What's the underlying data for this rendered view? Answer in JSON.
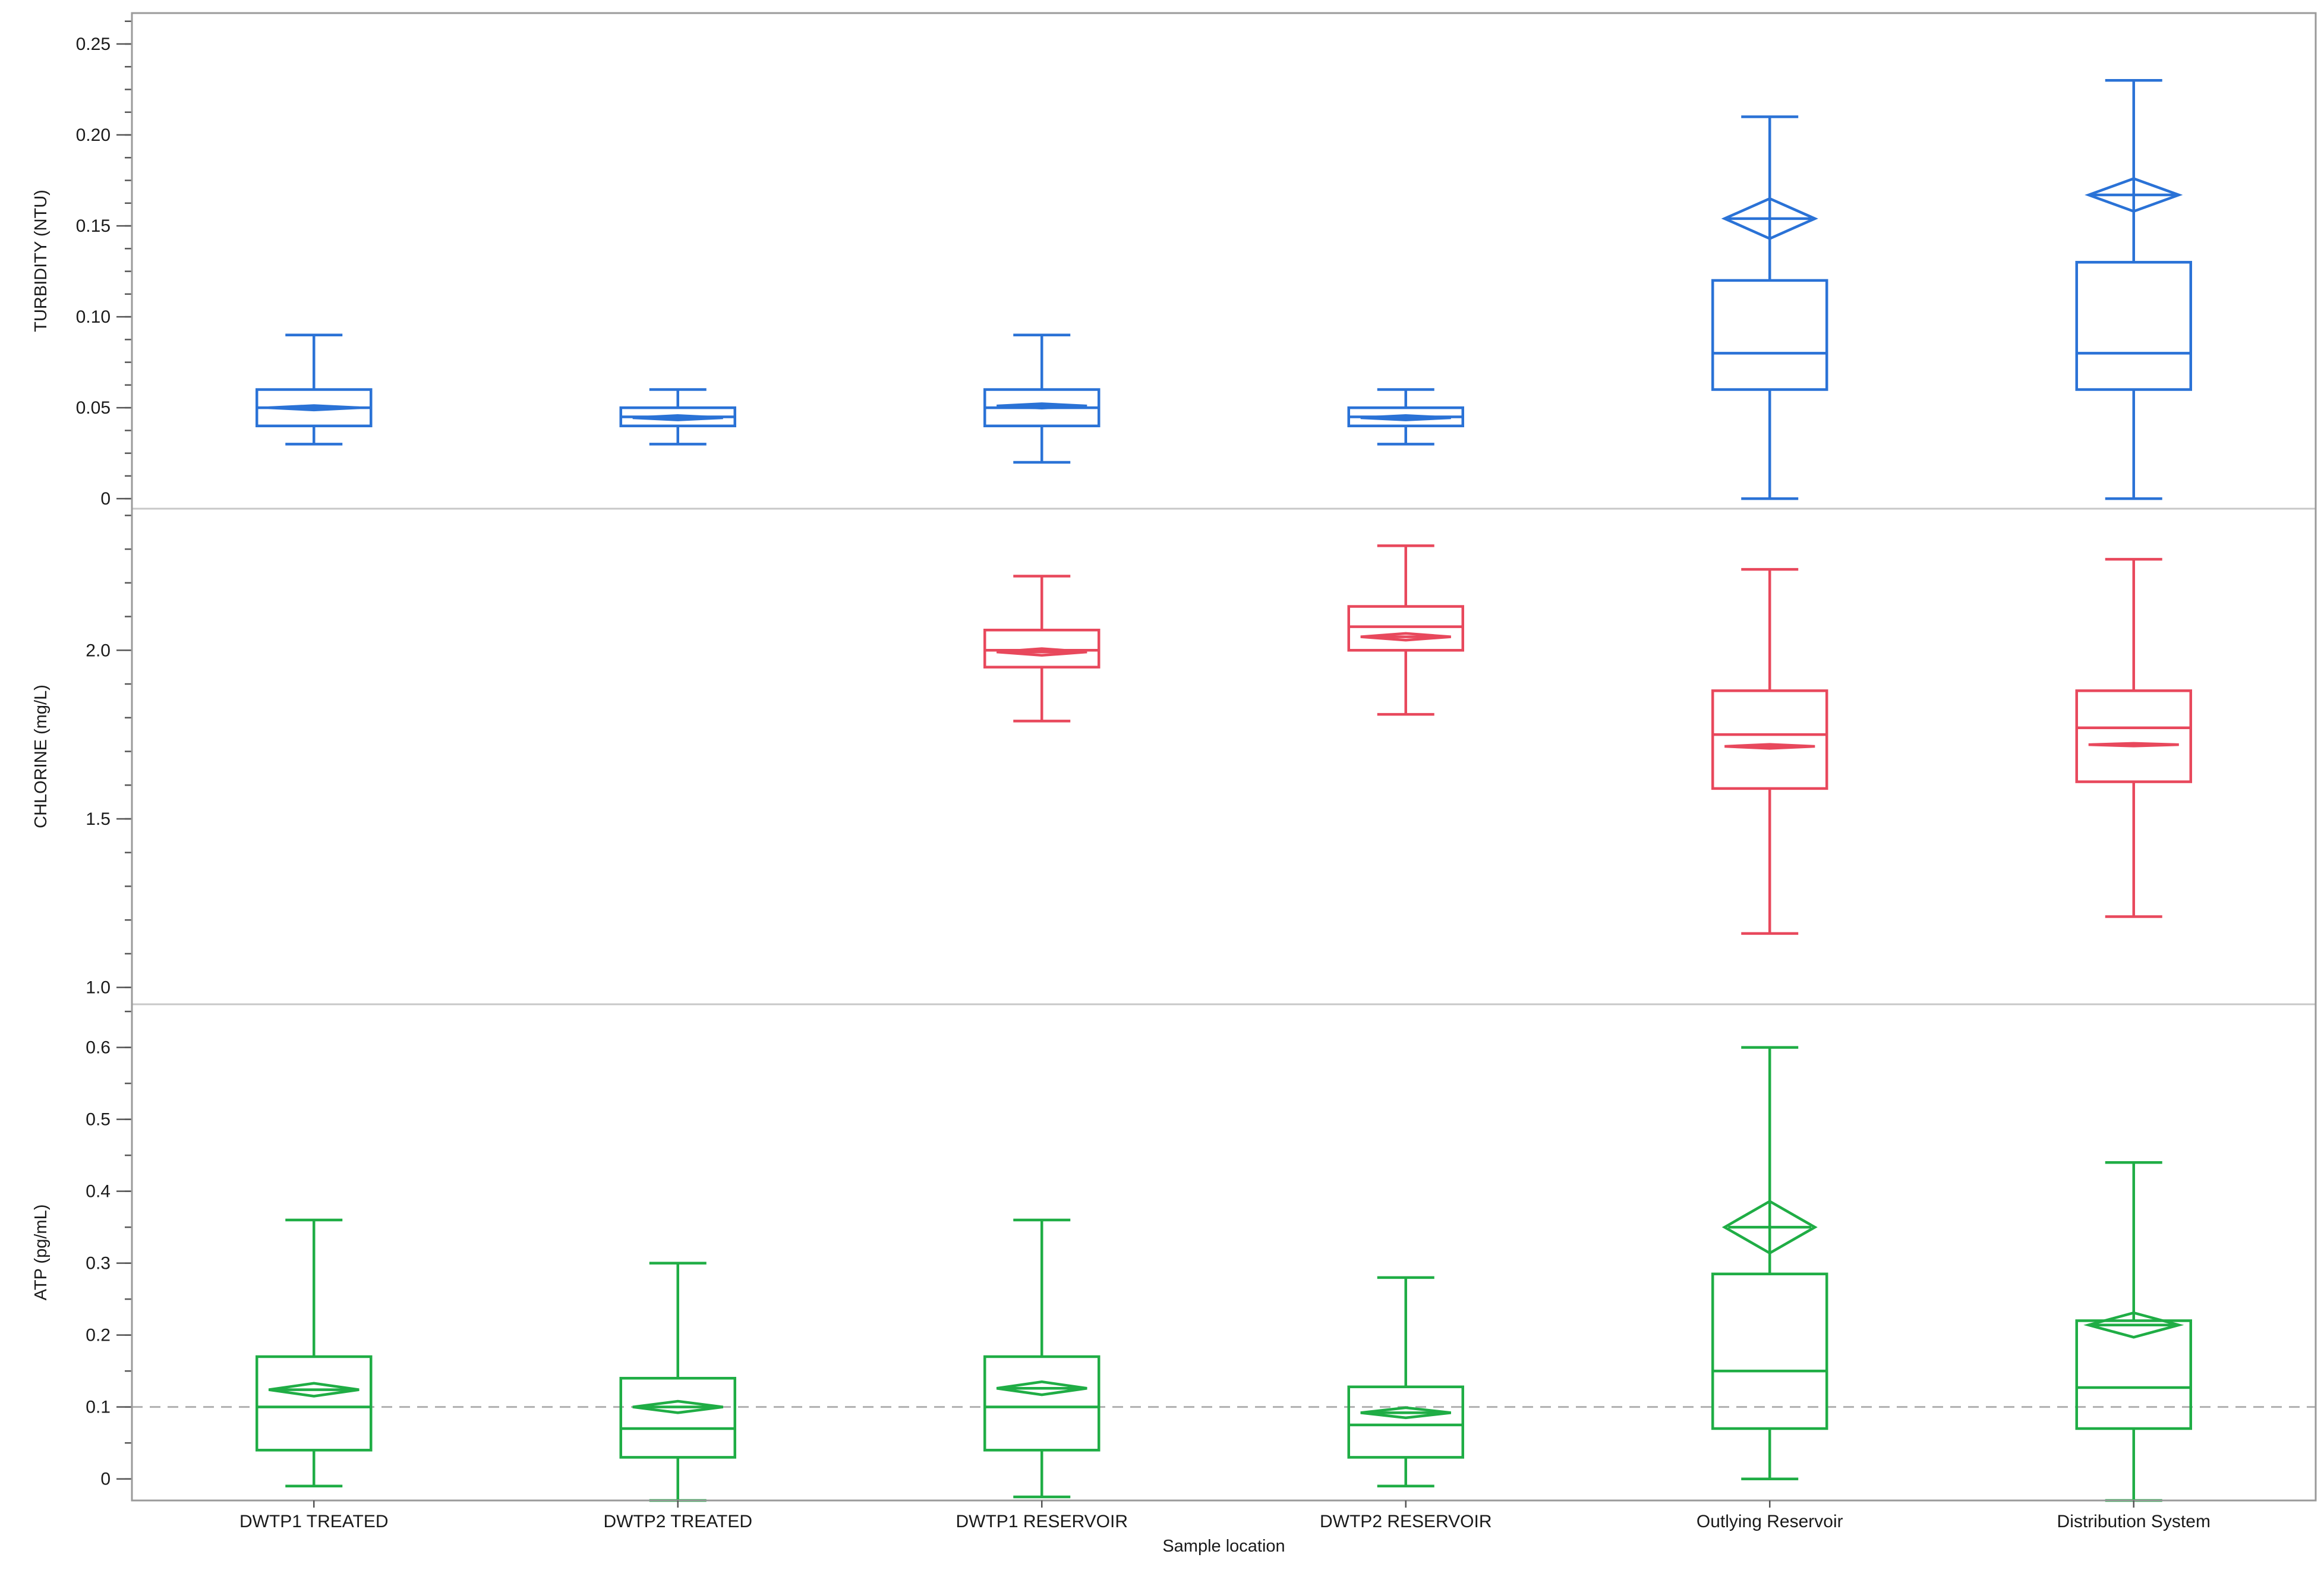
{
  "chart_data": {
    "type": "boxplot",
    "layout": "three vertically stacked panels sharing one categorical x axis",
    "xlabel": "Sample location",
    "categories": [
      "DWTP1 TREATED",
      "DWTP2 TREATED",
      "DWTP1 RESERVOIR",
      "DWTP2 RESERVOIR",
      "Outlying Reservoir",
      "Distribution System"
    ],
    "colors": {
      "turbidity": "#2a72d6",
      "chlorine": "#e8485c",
      "atp": "#1fad45",
      "frame": "#9a9a9a",
      "divider": "#c8c8c8",
      "reference": "#b0b0b0"
    },
    "panels": [
      {
        "key": "turbidity",
        "ylabel": "TURBIDITY (NTU)",
        "ylim": [
          -0.0055,
          0.267
        ],
        "yticks": [
          0,
          0.05,
          0.1,
          0.15,
          0.2,
          0.25
        ],
        "ytick_labels": [
          "0",
          "0.05",
          "0.10",
          "0.15",
          "0.20",
          "0.25"
        ],
        "minor_step": 0.0125,
        "boxes": [
          {
            "min": 0.03,
            "q1": 0.04,
            "median": 0.05,
            "q3": 0.06,
            "max": 0.09,
            "mean": 0.05,
            "ci": 0.0012
          },
          {
            "min": 0.03,
            "q1": 0.04,
            "median": 0.045,
            "q3": 0.05,
            "max": 0.06,
            "mean": 0.0445,
            "ci": 0.0012
          },
          {
            "min": 0.02,
            "q1": 0.04,
            "median": 0.05,
            "q3": 0.06,
            "max": 0.09,
            "mean": 0.051,
            "ci": 0.0012
          },
          {
            "min": 0.03,
            "q1": 0.04,
            "median": 0.045,
            "q3": 0.05,
            "max": 0.06,
            "mean": 0.0445,
            "ci": 0.0012
          },
          {
            "min": 0.0,
            "q1": 0.06,
            "median": 0.08,
            "q3": 0.12,
            "max": 0.21,
            "mean": 0.154,
            "ci": 0.011
          },
          {
            "min": 0.0,
            "q1": 0.06,
            "median": 0.08,
            "q3": 0.13,
            "max": 0.23,
            "mean": 0.167,
            "ci": 0.009
          }
        ]
      },
      {
        "key": "chlorine",
        "ylabel": "CHLORINE (mg/L)",
        "ylim": [
          0.95,
          2.42
        ],
        "yticks": [
          1.0,
          1.5,
          2.0
        ],
        "ytick_labels": [
          "1.0",
          "1.5",
          "2.0"
        ],
        "minor_step": 0.1,
        "boxes": [
          null,
          null,
          {
            "min": 1.79,
            "q1": 1.95,
            "median": 2.0,
            "q3": 2.06,
            "max": 2.22,
            "mean": 1.995,
            "ci": 0.01
          },
          {
            "min": 1.81,
            "q1": 2.0,
            "median": 2.07,
            "q3": 2.13,
            "max": 2.31,
            "mean": 2.04,
            "ci": 0.01
          },
          {
            "min": 1.16,
            "q1": 1.59,
            "median": 1.75,
            "q3": 1.88,
            "max": 2.24,
            "mean": 1.715,
            "ci": 0.006
          },
          {
            "min": 1.21,
            "q1": 1.61,
            "median": 1.77,
            "q3": 1.88,
            "max": 2.27,
            "mean": 1.72,
            "ci": 0.004
          }
        ]
      },
      {
        "key": "atp",
        "ylabel": "ATP (pg/mL)",
        "ylim": [
          -0.03,
          0.66
        ],
        "yticks": [
          0,
          0.1,
          0.2,
          0.3,
          0.4,
          0.5,
          0.6
        ],
        "ytick_labels": [
          "0",
          "0.1",
          "0.2",
          "0.3",
          "0.4",
          "0.5",
          "0.6"
        ],
        "minor_step": 0.05,
        "reference_line": 0.1,
        "boxes": [
          {
            "min": -0.01,
            "q1": 0.04,
            "median": 0.1,
            "q3": 0.17,
            "max": 0.36,
            "mean": 0.124,
            "ci": 0.009
          },
          {
            "min": -0.03,
            "q1": 0.03,
            "median": 0.07,
            "q3": 0.14,
            "max": 0.3,
            "mean": 0.1,
            "ci": 0.008
          },
          {
            "min": -0.025,
            "q1": 0.04,
            "median": 0.1,
            "q3": 0.17,
            "max": 0.36,
            "mean": 0.126,
            "ci": 0.009
          },
          {
            "min": -0.01,
            "q1": 0.03,
            "median": 0.075,
            "q3": 0.128,
            "max": 0.28,
            "mean": 0.092,
            "ci": 0.007
          },
          {
            "min": 0.0,
            "q1": 0.07,
            "median": 0.15,
            "q3": 0.285,
            "max": 0.6,
            "mean": 0.35,
            "ci": 0.036
          },
          {
            "min": -0.03,
            "q1": 0.07,
            "median": 0.127,
            "q3": 0.22,
            "max": 0.44,
            "mean": 0.214,
            "ci": 0.017
          }
        ]
      }
    ]
  }
}
